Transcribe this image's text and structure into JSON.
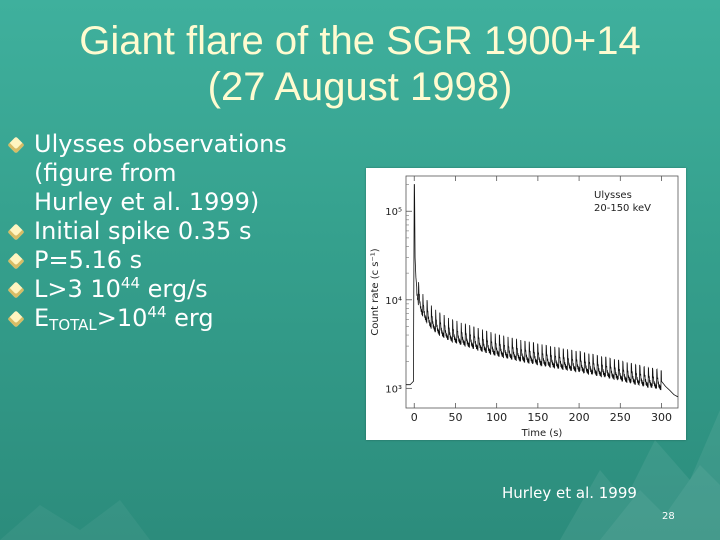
{
  "slide": {
    "title_line1": "Giant flare of the SGR 1900+14",
    "title_line2": "(27 August 1998)",
    "bullets": {
      "b1_line1": "Ulysses observations",
      "b1_line2": "(figure from",
      "b1_line3": "Hurley et al. 1999)",
      "b2": "Initial spike 0.35 s",
      "b3": "P=5.16 s",
      "b4_pre": "L>3 10",
      "b4_sup": "44",
      "b4_post": " erg/s",
      "b5_e": "E",
      "b5_sub": "TOTAL",
      "b5_gt": ">10",
      "b5_sup": "44",
      "b5_post": "  erg"
    },
    "caption": "Hurley et al. 1999",
    "page_number": "28",
    "colors": {
      "background": "#35a08d",
      "title": "#fffbd0",
      "text": "#ffffff",
      "bullet": "#fff5c0"
    }
  },
  "chart_data": {
    "type": "line",
    "title": "",
    "legend_lines": [
      "Ulysses",
      "20-150 keV"
    ],
    "xlabel": "Time (s)",
    "ylabel": "Count rate (c s⁻¹)",
    "xlim": [
      -10,
      320
    ],
    "ylim": [
      600,
      250000
    ],
    "y_scale": "log",
    "x_ticks": [
      0,
      50,
      100,
      150,
      200,
      250,
      300
    ],
    "y_ticks": [
      1000,
      10000,
      100000
    ],
    "y_tick_labels": [
      "10³",
      "10⁴",
      "10⁵"
    ],
    "grid": false,
    "series": [
      {
        "name": "",
        "period_s": 5.16,
        "x": [
          -10,
          -5,
          -1,
          0,
          0.35,
          1,
          2,
          3,
          5,
          8,
          12,
          20,
          30,
          45,
          60,
          80,
          100,
          130,
          160,
          200,
          240,
          280,
          300,
          305,
          310,
          315,
          320
        ],
        "y": [
          1100,
          1100,
          1200,
          200000,
          200000,
          30000,
          18000,
          14000,
          11000,
          9000,
          7500,
          6000,
          5000,
          4200,
          3800,
          3300,
          2900,
          2500,
          2200,
          1900,
          1600,
          1300,
          1200,
          1050,
          950,
          850,
          800
        ]
      }
    ]
  }
}
